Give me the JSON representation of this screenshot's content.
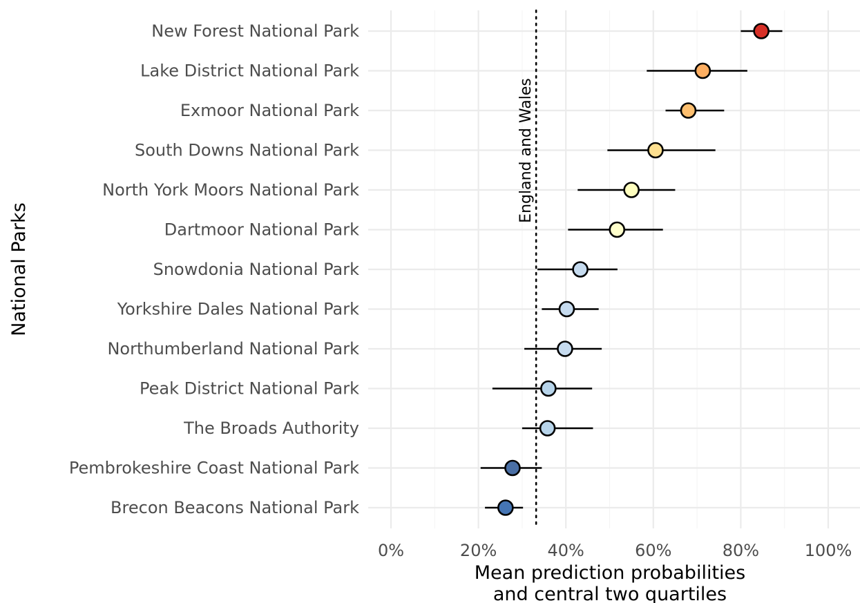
{
  "chart_data": {
    "type": "scatter",
    "xlabel": [
      "Mean prediction probabilities",
      "and central two quartiles"
    ],
    "ylabel": "National Parks",
    "xlim": [
      0,
      1
    ],
    "x_ticks": [
      "0%",
      "20%",
      "40%",
      "60%",
      "80%",
      "100%"
    ],
    "grid": true,
    "reference_line": {
      "value": 0.332,
      "label": "England and Wales",
      "style": "dotted"
    },
    "points": [
      {
        "label": "New Forest National Park",
        "mean": 0.847,
        "lower": 0.8,
        "upper": 0.895,
        "color": "#d73027"
      },
      {
        "label": "Lake District National Park",
        "mean": 0.713,
        "lower": 0.585,
        "upper": 0.815,
        "color": "#fdae61"
      },
      {
        "label": "Exmoor National Park",
        "mean": 0.68,
        "lower": 0.628,
        "upper": 0.762,
        "color": "#fdbf6f"
      },
      {
        "label": "South Downs National Park",
        "mean": 0.605,
        "lower": 0.495,
        "upper": 0.742,
        "color": "#fee090"
      },
      {
        "label": "North York Moors National Park",
        "mean": 0.55,
        "lower": 0.427,
        "upper": 0.65,
        "color": "#ffffbf"
      },
      {
        "label": "Dartmoor National Park",
        "mean": 0.517,
        "lower": 0.405,
        "upper": 0.622,
        "color": "#ffffcc"
      },
      {
        "label": "Snowdonia National Park",
        "mean": 0.433,
        "lower": 0.335,
        "upper": 0.518,
        "color": "#c6dbef"
      },
      {
        "label": "Yorkshire Dales National Park",
        "mean": 0.402,
        "lower": 0.345,
        "upper": 0.475,
        "color": "#c6dbef"
      },
      {
        "label": "Northumberland National Park",
        "mean": 0.398,
        "lower": 0.305,
        "upper": 0.482,
        "color": "#c6dbef"
      },
      {
        "label": "Peak District National Park",
        "mean": 0.36,
        "lower": 0.232,
        "upper": 0.46,
        "color": "#b7d4ea"
      },
      {
        "label": "The Broads Authority",
        "mean": 0.358,
        "lower": 0.3,
        "upper": 0.462,
        "color": "#b7d4ea"
      },
      {
        "label": "Pembrokeshire Coast National Park",
        "mean": 0.278,
        "lower": 0.205,
        "upper": 0.345,
        "color": "#4a6fa5"
      },
      {
        "label": "Brecon Beacons National Park",
        "mean": 0.262,
        "lower": 0.215,
        "upper": 0.302,
        "color": "#4575b4"
      }
    ]
  }
}
